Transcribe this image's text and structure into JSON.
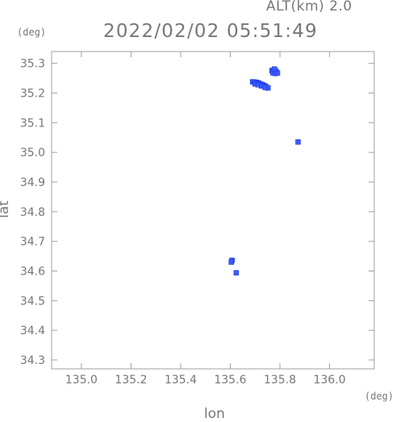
{
  "header": {
    "altitude_label": "ALT(km) 2.0",
    "timestamp": "2022/02/02 05:51:49"
  },
  "chart_data": {
    "type": "scatter",
    "title": "",
    "xlabel": "lon",
    "ylabel": "lat",
    "x_unit": "(deg)",
    "y_unit": "(deg)",
    "xlim": [
      134.88,
      136.18
    ],
    "ylim": [
      34.27,
      35.34
    ],
    "xticks": [
      {
        "value": 135.0,
        "label": "135.0"
      },
      {
        "value": 135.2,
        "label": "135.2"
      },
      {
        "value": 135.4,
        "label": "135.4"
      },
      {
        "value": 135.6,
        "label": "135.6"
      },
      {
        "value": 135.8,
        "label": "135.8"
      },
      {
        "value": 136.0,
        "label": "136.0"
      }
    ],
    "yticks": [
      {
        "value": 34.3,
        "label": "34.3"
      },
      {
        "value": 34.4,
        "label": "34.4"
      },
      {
        "value": 34.5,
        "label": "34.5"
      },
      {
        "value": 34.6,
        "label": "34.6"
      },
      {
        "value": 34.7,
        "label": "34.7"
      },
      {
        "value": 34.8,
        "label": "34.8"
      },
      {
        "value": 34.9,
        "label": "34.9"
      },
      {
        "value": 35.0,
        "label": "35.0"
      },
      {
        "value": 35.1,
        "label": "35.1"
      },
      {
        "value": 35.2,
        "label": "35.2"
      },
      {
        "value": 35.3,
        "label": "35.3"
      }
    ],
    "grid": false,
    "colors": {
      "echo": "#3b5bff",
      "echo_dark": "#1a2fd0",
      "frame": "#a0a0a0"
    },
    "points": [
      {
        "x": 135.768,
        "y": 35.276
      },
      {
        "x": 135.776,
        "y": 35.277
      },
      {
        "x": 135.784,
        "y": 35.274
      },
      {
        "x": 135.772,
        "y": 35.268
      },
      {
        "x": 135.782,
        "y": 35.266
      },
      {
        "x": 135.79,
        "y": 35.268
      },
      {
        "x": 135.778,
        "y": 35.281
      },
      {
        "x": 135.69,
        "y": 35.238
      },
      {
        "x": 135.698,
        "y": 35.237
      },
      {
        "x": 135.706,
        "y": 35.236
      },
      {
        "x": 135.714,
        "y": 35.234
      },
      {
        "x": 135.722,
        "y": 35.231
      },
      {
        "x": 135.73,
        "y": 35.228
      },
      {
        "x": 135.738,
        "y": 35.225
      },
      {
        "x": 135.745,
        "y": 35.221
      },
      {
        "x": 135.752,
        "y": 35.217
      },
      {
        "x": 135.7,
        "y": 35.231
      },
      {
        "x": 135.712,
        "y": 35.228
      },
      {
        "x": 135.726,
        "y": 35.224
      },
      {
        "x": 135.74,
        "y": 35.219
      },
      {
        "x": 135.873,
        "y": 35.035
      },
      {
        "x": 135.607,
        "y": 34.636
      },
      {
        "x": 135.604,
        "y": 34.63
      },
      {
        "x": 135.624,
        "y": 34.594
      }
    ]
  }
}
